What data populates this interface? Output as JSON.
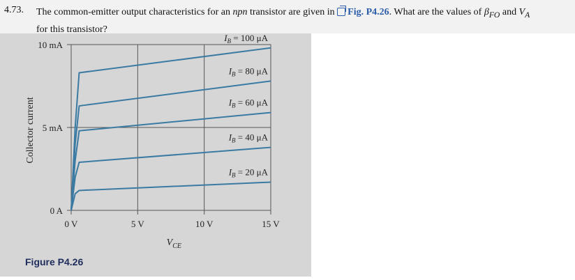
{
  "problem": {
    "number": "4.73.",
    "text_before_link": "The common-emitter output characteristics for an ",
    "npn": "npn",
    "text_mid": " transistor are given in ",
    "link_label": "Fig. P4.26",
    "text_after_link": ". What are the values of ",
    "beta_symbol": "β",
    "beta_sub": "FO",
    "and_text": " and ",
    "va_symbol": "V",
    "va_sub": "A",
    "line2": "for this transistor?"
  },
  "figure": {
    "caption": "Figure P4.26",
    "colors": {
      "curve": "#3a7aa3",
      "panel": "#d6d6d6",
      "grid": "#555555"
    }
  },
  "chart_data": {
    "type": "line",
    "ylabel": "Collector current",
    "xlabel_main": "V",
    "xlabel_sub": "CE",
    "x_ticks": [
      "0 V",
      "5 V",
      "10 V",
      "15 V"
    ],
    "y_ticks": [
      "0 A",
      "5 mA",
      "10 mA"
    ],
    "xlim": [
      0,
      15
    ],
    "ylim": [
      0,
      10
    ],
    "grid": true,
    "series": [
      {
        "name_main": "I",
        "name_sub": "B",
        "name_val": " = 100 μA",
        "x": [
          0,
          0.3,
          0.6,
          15
        ],
        "y": [
          0,
          5.0,
          8.3,
          9.8
        ]
      },
      {
        "name_main": "I",
        "name_sub": "B",
        "name_val": " = 80 μA",
        "x": [
          0,
          0.3,
          0.6,
          15
        ],
        "y": [
          0,
          4.0,
          6.3,
          7.8
        ]
      },
      {
        "name_main": "I",
        "name_sub": "B",
        "name_val": " = 60 μA",
        "x": [
          0,
          0.3,
          0.6,
          15
        ],
        "y": [
          0,
          3.0,
          4.8,
          5.9
        ]
      },
      {
        "name_main": "I",
        "name_sub": "B",
        "name_val": " = 40 μA",
        "x": [
          0,
          0.3,
          0.6,
          15
        ],
        "y": [
          0,
          2.0,
          2.9,
          3.8
        ]
      },
      {
        "name_main": "I",
        "name_sub": "B",
        "name_val": " = 20 μA",
        "x": [
          0,
          0.3,
          0.6,
          15
        ],
        "y": [
          0,
          1.0,
          1.2,
          1.7
        ]
      }
    ]
  }
}
